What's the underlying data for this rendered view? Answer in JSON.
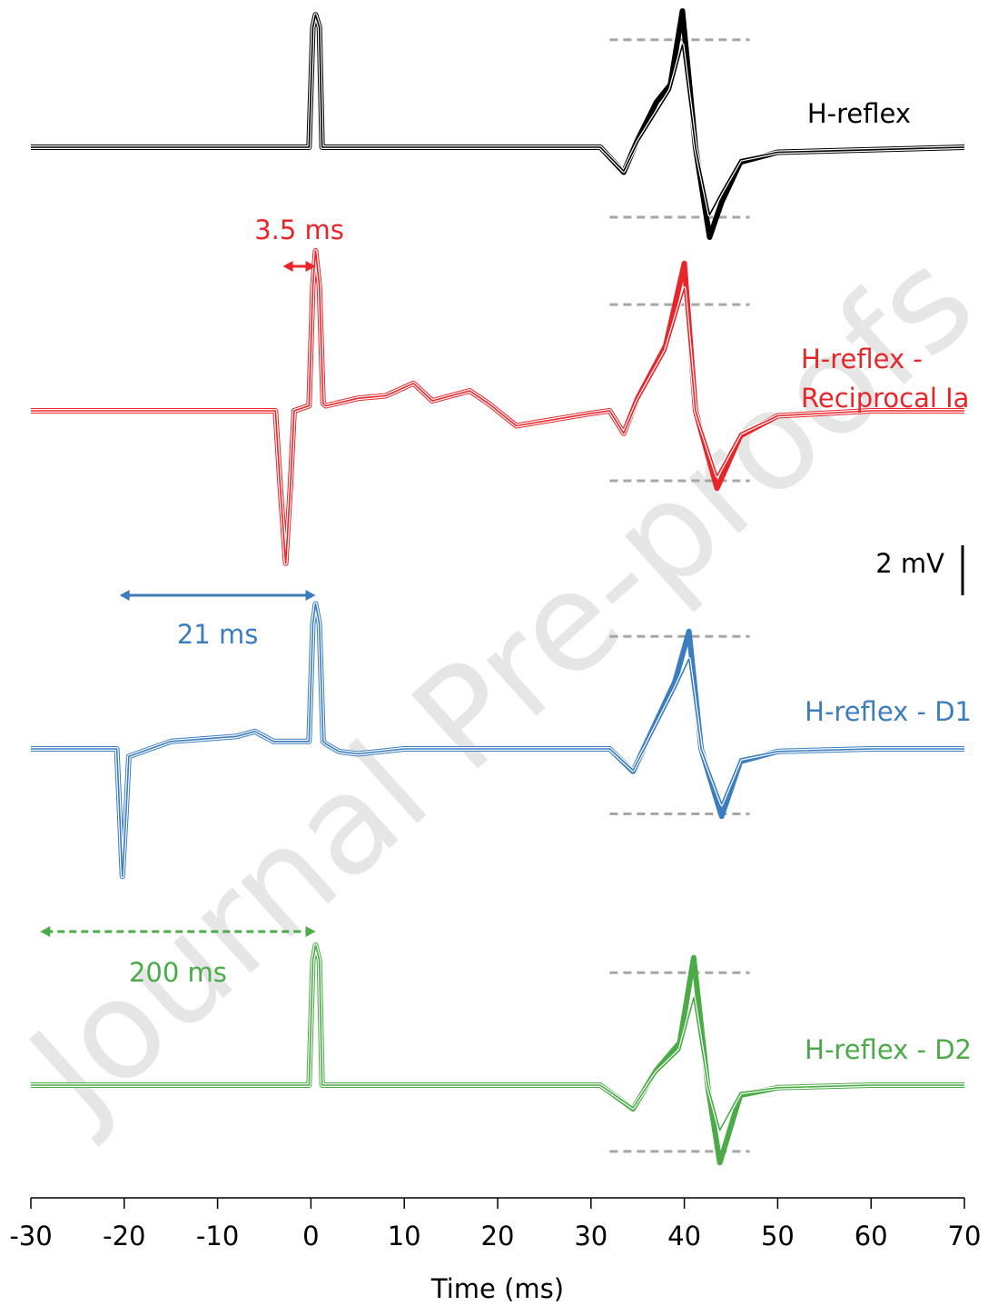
{
  "chart_data": {
    "type": "line",
    "xlabel": "Time (ms)",
    "xlim": [
      -30,
      70
    ],
    "xticks": [
      -30,
      -20,
      -10,
      0,
      10,
      20,
      30,
      40,
      50,
      60,
      70
    ],
    "watermark": "Journal Pre-proofs",
    "scale_bar": {
      "label": "2 mV",
      "value": 2
    },
    "reference_xrange": [
      32,
      47
    ],
    "reference_color": "#a6a6a6",
    "panels": [
      {
        "label_lines": [
          "H-reflex"
        ],
        "color": "#000000",
        "x": [
          -30,
          -0.2,
          0.2,
          0.5,
          0.9,
          1.2,
          1.6,
          31,
          33.5,
          35,
          37,
          38.5,
          39.8,
          41.2,
          42.7,
          44,
          46,
          50,
          60,
          70
        ],
        "values": [
          0,
          0,
          4.8,
          5.3,
          4.8,
          0,
          0,
          0,
          -1.0,
          0.3,
          1.8,
          2.5,
          5.45,
          0,
          -3.6,
          -2.2,
          -0.6,
          -0.2,
          -0.1,
          0
        ],
        "thin_values": [
          0,
          0,
          4.8,
          5.3,
          4.8,
          0,
          0,
          0,
          -0.95,
          0.2,
          1.4,
          2.3,
          4.1,
          0,
          -2.7,
          -1.8,
          -0.5,
          -0.2,
          -0.1,
          0
        ],
        "reference_levels": [
          4.3,
          -2.8
        ]
      },
      {
        "label_lines": [
          "H-reflex -",
          "Reciprocal Ia"
        ],
        "color": "#e8262a",
        "interval": {
          "label": "3.5 ms",
          "from": -3,
          "to": 0.5,
          "dashed": false
        },
        "x": [
          -30,
          -3.8,
          -3.3,
          -2.7,
          -2.2,
          -1.8,
          -0.2,
          0.2,
          0.5,
          0.9,
          1.3,
          1.6,
          5,
          8,
          11,
          13,
          17,
          19,
          22,
          30,
          32,
          33.5,
          35,
          38,
          40,
          41.2,
          43.5,
          46,
          50,
          60,
          70
        ],
        "values": [
          0,
          0,
          -3,
          -6.1,
          -3,
          0,
          0.2,
          5,
          6.4,
          5,
          0.3,
          0.2,
          0.5,
          0.6,
          1.1,
          0.4,
          0.8,
          0.3,
          -0.6,
          -0.1,
          0,
          -0.9,
          0.5,
          2.6,
          5.9,
          0,
          -3.1,
          -1,
          -0.2,
          0,
          0
        ],
        "thin_values": [
          0,
          0,
          -3,
          -6.1,
          -3,
          0,
          0.2,
          5,
          6.4,
          5,
          0.3,
          0.2,
          0.5,
          0.6,
          1.1,
          0.4,
          0.8,
          0.3,
          -0.6,
          -0.1,
          0,
          -0.9,
          0.4,
          2.4,
          4.9,
          0,
          -2.6,
          -0.9,
          -0.2,
          0,
          0
        ],
        "reference_levels": [
          4.25,
          -2.8
        ]
      },
      {
        "label_lines": [
          "H-reflex - D1"
        ],
        "color": "#3b7dbf",
        "interval": {
          "label": "21 ms",
          "from": -20.5,
          "to": 0.5,
          "dashed": false
        },
        "x": [
          -30,
          -20.8,
          -20.5,
          -20.2,
          -19.8,
          -19.5,
          -15,
          -8,
          -6,
          -4,
          -0.2,
          0.2,
          0.5,
          0.9,
          1.3,
          1.6,
          3,
          5,
          10,
          30,
          32,
          34.5,
          36,
          39,
          40.5,
          41.8,
          44,
          46,
          50,
          60,
          70
        ],
        "values": [
          0,
          0,
          -2.5,
          -5.1,
          -2.5,
          -0.3,
          0.3,
          0.5,
          0.7,
          0.3,
          0.3,
          5,
          5.8,
          5,
          0.3,
          0.2,
          -0.1,
          -0.2,
          0,
          0,
          0,
          -0.9,
          0.3,
          2.7,
          4.7,
          0,
          -2.7,
          -0.5,
          -0.1,
          0,
          0
        ],
        "thin_values": [
          0,
          0,
          -2.5,
          -5.1,
          -2.5,
          -0.3,
          0.3,
          0.5,
          0.7,
          0.3,
          0.3,
          5,
          5.8,
          5,
          0.3,
          0.2,
          -0.1,
          -0.2,
          0,
          0,
          0,
          -0.85,
          0.2,
          2.4,
          3.6,
          0,
          -2.2,
          -0.4,
          -0.1,
          0,
          0
        ],
        "reference_levels": [
          4.5,
          -2.6
        ]
      },
      {
        "label_lines": [
          "H-reflex - D2"
        ],
        "color": "#4aab47",
        "interval": {
          "label": "200 ms",
          "from": -29,
          "to": 0.5,
          "dashed": true
        },
        "x": [
          -30,
          -0.2,
          0.2,
          0.5,
          0.9,
          1.2,
          1.6,
          31,
          34.5,
          37,
          39.5,
          41,
          42.5,
          43.8,
          46,
          50,
          60,
          70
        ],
        "values": [
          0,
          0,
          5,
          5.6,
          5,
          0,
          0,
          0,
          -0.95,
          0.6,
          1.7,
          5.1,
          0,
          -3.1,
          -0.4,
          -0.1,
          0,
          0
        ],
        "thin_values": [
          0,
          0,
          5,
          5.6,
          5,
          0,
          0,
          0,
          -0.9,
          0.5,
          1.4,
          3.5,
          0,
          -1.8,
          -0.3,
          -0.1,
          0,
          0
        ],
        "reference_levels": [
          4.5,
          -2.65
        ]
      }
    ]
  }
}
